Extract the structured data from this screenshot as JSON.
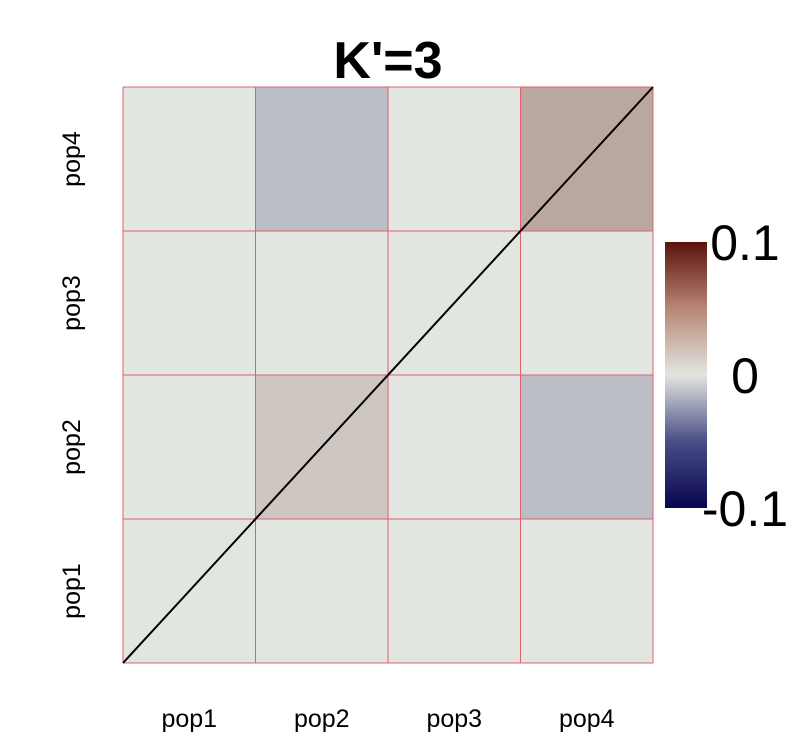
{
  "chart_data": {
    "type": "heatmap",
    "title": "K'=3",
    "x_categories": [
      "pop1",
      "pop2",
      "pop3",
      "pop4"
    ],
    "y_categories": [
      "pop1",
      "pop2",
      "pop3",
      "pop4"
    ],
    "block_values": [
      {
        "x": "pop1",
        "y": "pop1",
        "value": 0.0
      },
      {
        "x": "pop2",
        "y": "pop1",
        "value": 0.0
      },
      {
        "x": "pop3",
        "y": "pop1",
        "value": 0.0
      },
      {
        "x": "pop4",
        "y": "pop1",
        "value": 0.0
      },
      {
        "x": "pop1",
        "y": "pop2",
        "value": 0.0
      },
      {
        "x": "pop2",
        "y": "pop2",
        "value": 0.015
      },
      {
        "x": "pop3",
        "y": "pop2",
        "value": 0.0
      },
      {
        "x": "pop4",
        "y": "pop2",
        "value": -0.018
      },
      {
        "x": "pop1",
        "y": "pop3",
        "value": 0.0
      },
      {
        "x": "pop2",
        "y": "pop3",
        "value": 0.0
      },
      {
        "x": "pop3",
        "y": "pop3",
        "value": 0.0
      },
      {
        "x": "pop4",
        "y": "pop3",
        "value": 0.0
      },
      {
        "x": "pop1",
        "y": "pop4",
        "value": 0.0
      },
      {
        "x": "pop2",
        "y": "pop4",
        "value": -0.018
      },
      {
        "x": "pop3",
        "y": "pop4",
        "value": 0.0
      },
      {
        "x": "pop4",
        "y": "pop4",
        "value": 0.03
      }
    ],
    "diagonal_line": true,
    "colorbar": {
      "range": [
        -0.1,
        0.1
      ],
      "tick_labels": [
        "0.1",
        "0",
        "-0.1"
      ],
      "tick_values": [
        0.1,
        0,
        -0.1
      ],
      "colors": [
        "#08064e",
        "#e2e6e0",
        "#5a130a"
      ]
    },
    "grid_color": "#e0606e"
  }
}
